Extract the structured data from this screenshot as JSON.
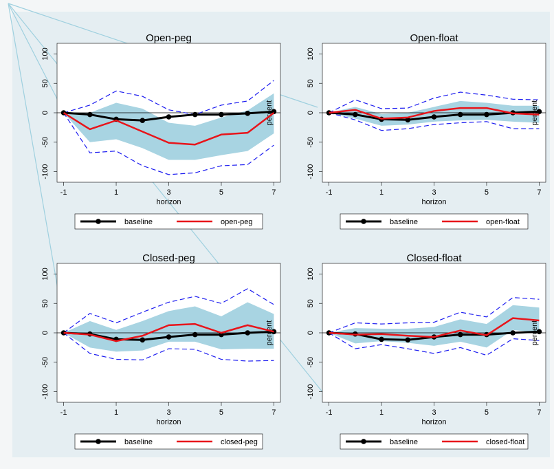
{
  "chart_data": [
    {
      "type": "line",
      "title": "Open-peg",
      "xlabel": "horizon",
      "ylabel": "percent",
      "x": [
        -1,
        0,
        1,
        2,
        3,
        4,
        5,
        6,
        7
      ],
      "xlim": [
        -1.25,
        7.25
      ],
      "xticks": [
        -1,
        1,
        3,
        5,
        7
      ],
      "ylim": [
        -118,
        118
      ],
      "yticks": [
        -100,
        -50,
        0,
        50,
        100
      ],
      "series": [
        {
          "name": "baseline",
          "color": "#000000",
          "marker": true,
          "values": [
            0,
            -3,
            -11,
            -13,
            -7,
            -3,
            -3,
            -1,
            2
          ]
        },
        {
          "name": "open-peg",
          "color": "#e8141a",
          "marker": false,
          "values": [
            0,
            -28,
            -13,
            -32,
            -51,
            -54,
            -37,
            -34,
            0
          ]
        }
      ],
      "band": {
        "color": "#a8d4e2",
        "upper": [
          0,
          0,
          17,
          7,
          -17,
          -22,
          -8,
          4,
          33
        ],
        "lower": [
          0,
          -50,
          -45,
          -60,
          -80,
          -80,
          -72,
          -65,
          -35
        ]
      },
      "bounds": {
        "color": "#1c1cf0",
        "upper": [
          0,
          13,
          37,
          28,
          5,
          -3,
          13,
          20,
          55
        ],
        "lower": [
          0,
          -68,
          -65,
          -90,
          -105,
          -102,
          -90,
          -88,
          -55
        ]
      }
    },
    {
      "type": "line",
      "title": "Open-float",
      "xlabel": "horizon",
      "ylabel": "percent",
      "x": [
        -1,
        0,
        1,
        2,
        3,
        4,
        5,
        6,
        7
      ],
      "xlim": [
        -1.25,
        7.25
      ],
      "xticks": [
        -1,
        1,
        3,
        5,
        7
      ],
      "ylim": [
        -118,
        118
      ],
      "yticks": [
        -100,
        -50,
        0,
        50,
        100
      ],
      "series": [
        {
          "name": "baseline",
          "color": "#000000",
          "marker": true,
          "values": [
            0,
            -3,
            -11,
            -12,
            -7,
            -3,
            -3,
            0,
            2
          ]
        },
        {
          "name": "open-float",
          "color": "#e8141a",
          "marker": false,
          "values": [
            0,
            5,
            -10,
            -8,
            3,
            8,
            8,
            -1,
            -3
          ]
        }
      ],
      "band": {
        "color": "#a8d4e2",
        "upper": [
          0,
          10,
          -2,
          0,
          10,
          20,
          17,
          12,
          12
        ],
        "lower": [
          0,
          -10,
          -22,
          -20,
          -15,
          -13,
          -12,
          -15,
          -17
        ]
      },
      "bounds": {
        "color": "#1c1cf0",
        "upper": [
          0,
          22,
          7,
          8,
          25,
          35,
          30,
          23,
          22
        ],
        "lower": [
          0,
          -12,
          -30,
          -27,
          -20,
          -17,
          -15,
          -27,
          -27
        ]
      }
    },
    {
      "type": "line",
      "title": "Closed-peg",
      "xlabel": "horizon",
      "ylabel": "percent",
      "x": [
        -1,
        0,
        1,
        2,
        3,
        4,
        5,
        6,
        7
      ],
      "xlim": [
        -1.25,
        7.25
      ],
      "xticks": [
        -1,
        1,
        3,
        5,
        7
      ],
      "ylim": [
        -118,
        118
      ],
      "yticks": [
        -100,
        -50,
        0,
        50,
        100
      ],
      "series": [
        {
          "name": "baseline",
          "color": "#000000",
          "marker": true,
          "values": [
            0,
            -2,
            -11,
            -12,
            -7,
            -3,
            -3,
            0,
            2
          ]
        },
        {
          "name": "closed-peg",
          "color": "#e8141a",
          "marker": false,
          "values": [
            0,
            -3,
            -14,
            -5,
            13,
            15,
            0,
            13,
            2
          ]
        }
      ],
      "band": {
        "color": "#a8d4e2",
        "upper": [
          0,
          20,
          5,
          20,
          37,
          45,
          28,
          52,
          32
        ],
        "lower": [
          0,
          -25,
          -32,
          -30,
          -15,
          -15,
          -28,
          -27,
          -27
        ]
      },
      "bounds": {
        "color": "#1c1cf0",
        "upper": [
          0,
          33,
          17,
          35,
          52,
          62,
          50,
          75,
          48
        ],
        "lower": [
          0,
          -35,
          -45,
          -46,
          -27,
          -28,
          -45,
          -48,
          -47
        ]
      }
    },
    {
      "type": "line",
      "title": "Closed-float",
      "xlabel": "horizon",
      "ylabel": "percent",
      "x": [
        -1,
        0,
        1,
        2,
        3,
        4,
        5,
        6,
        7
      ],
      "xlim": [
        -1.25,
        7.25
      ],
      "xticks": [
        -1,
        1,
        3,
        5,
        7
      ],
      "ylim": [
        -118,
        118
      ],
      "yticks": [
        -100,
        -50,
        0,
        50,
        100
      ],
      "series": [
        {
          "name": "baseline",
          "color": "#000000",
          "marker": true,
          "values": [
            0,
            -2,
            -11,
            -12,
            -7,
            -3,
            -3,
            0,
            2
          ]
        },
        {
          "name": "closed-float",
          "color": "#e8141a",
          "marker": false,
          "values": [
            0,
            -3,
            -2,
            -5,
            -7,
            4,
            -4,
            25,
            21
          ]
        }
      ],
      "band": {
        "color": "#a8d4e2",
        "upper": [
          0,
          8,
          7,
          7,
          10,
          23,
          15,
          47,
          43
        ],
        "lower": [
          0,
          -18,
          -14,
          -17,
          -22,
          -15,
          -25,
          5,
          0
        ]
      },
      "bounds": {
        "color": "#1c1cf0",
        "upper": [
          0,
          17,
          15,
          17,
          18,
          35,
          27,
          60,
          57
        ],
        "lower": [
          0,
          -27,
          -20,
          -27,
          -35,
          -25,
          -38,
          -10,
          -13
        ]
      }
    }
  ]
}
